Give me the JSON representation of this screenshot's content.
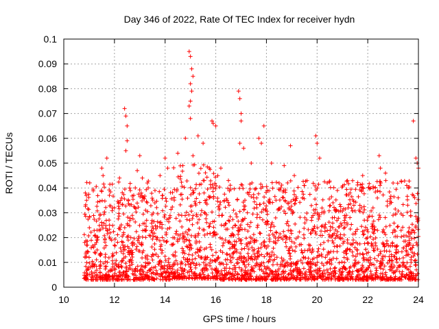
{
  "chart_data": {
    "type": "scatter",
    "title": "Day 346 of 2022, Rate Of TEC Index for receiver hydn",
    "xlabel": "GPS time / hours",
    "ylabel": "ROTI / TECUs",
    "xlim": [
      10,
      24
    ],
    "ylim": [
      0,
      0.1
    ],
    "x_ticks": [
      10,
      12,
      14,
      16,
      18,
      20,
      22,
      24
    ],
    "x_tick_labels": [
      "10",
      "12",
      "14",
      "16",
      "18",
      "20",
      "22",
      "24"
    ],
    "y_ticks": [
      0,
      0.01,
      0.02,
      0.03,
      0.04,
      0.05,
      0.06,
      0.07,
      0.08,
      0.09,
      0.1
    ],
    "y_tick_labels": [
      "0",
      "0.01",
      "0.02",
      "0.03",
      "0.04",
      "0.05",
      "0.06",
      "0.07",
      "0.08",
      "0.09",
      "0.1"
    ],
    "grid": true,
    "marker": "+",
    "marker_color": "#ff0000",
    "series": [
      {
        "name": "ROTI",
        "points": [
          [
            10.85,
            0.038
          ],
          [
            10.9,
            0.035
          ],
          [
            11.0,
            0.012
          ],
          [
            11.3,
            0.019
          ],
          [
            11.5,
            0.048
          ],
          [
            11.55,
            0.045
          ],
          [
            11.7,
            0.052
          ],
          [
            11.8,
            0.037
          ],
          [
            12.0,
            0.032
          ],
          [
            12.2,
            0.044
          ],
          [
            12.4,
            0.072
          ],
          [
            12.45,
            0.069
          ],
          [
            12.5,
            0.065
          ],
          [
            12.5,
            0.059
          ],
          [
            12.45,
            0.055
          ],
          [
            12.6,
            0.04
          ],
          [
            12.9,
            0.047
          ],
          [
            13.0,
            0.053
          ],
          [
            13.1,
            0.044
          ],
          [
            13.3,
            0.042
          ],
          [
            13.6,
            0.039
          ],
          [
            13.8,
            0.045
          ],
          [
            14.0,
            0.052
          ],
          [
            14.1,
            0.048
          ],
          [
            14.5,
            0.054
          ],
          [
            14.7,
            0.049
          ],
          [
            14.8,
            0.06
          ],
          [
            14.95,
            0.095
          ],
          [
            15.0,
            0.093
          ],
          [
            15.05,
            0.088
          ],
          [
            15.1,
            0.085
          ],
          [
            15.0,
            0.082
          ],
          [
            15.05,
            0.079
          ],
          [
            15.0,
            0.075
          ],
          [
            14.95,
            0.073
          ],
          [
            15.0,
            0.068
          ],
          [
            15.1,
            0.053
          ],
          [
            15.3,
            0.061
          ],
          [
            15.5,
            0.058
          ],
          [
            15.85,
            0.067
          ],
          [
            15.9,
            0.066
          ],
          [
            16.0,
            0.065
          ],
          [
            16.2,
            0.048
          ],
          [
            16.5,
            0.043
          ],
          [
            16.9,
            0.079
          ],
          [
            16.95,
            0.076
          ],
          [
            17.0,
            0.07
          ],
          [
            17.0,
            0.067
          ],
          [
            16.95,
            0.058
          ],
          [
            17.1,
            0.056
          ],
          [
            17.4,
            0.05
          ],
          [
            17.7,
            0.06
          ],
          [
            17.9,
            0.065
          ],
          [
            17.8,
            0.058
          ],
          [
            18.2,
            0.05
          ],
          [
            18.5,
            0.042
          ],
          [
            18.7,
            0.049
          ],
          [
            18.95,
            0.057
          ],
          [
            19.1,
            0.045
          ],
          [
            19.5,
            0.041
          ],
          [
            19.95,
            0.061
          ],
          [
            20.0,
            0.058
          ],
          [
            20.1,
            0.052
          ],
          [
            20.4,
            0.042
          ],
          [
            20.8,
            0.039
          ],
          [
            21.3,
            0.038
          ],
          [
            21.8,
            0.045
          ],
          [
            22.45,
            0.053
          ],
          [
            22.5,
            0.048
          ],
          [
            22.7,
            0.046
          ],
          [
            23.0,
            0.042
          ],
          [
            23.2,
            0.036
          ],
          [
            23.6,
            0.04
          ],
          [
            23.8,
            0.067
          ],
          [
            23.9,
            0.052
          ],
          [
            23.95,
            0.05
          ],
          [
            24.0,
            0.048
          ]
        ]
      }
    ]
  }
}
